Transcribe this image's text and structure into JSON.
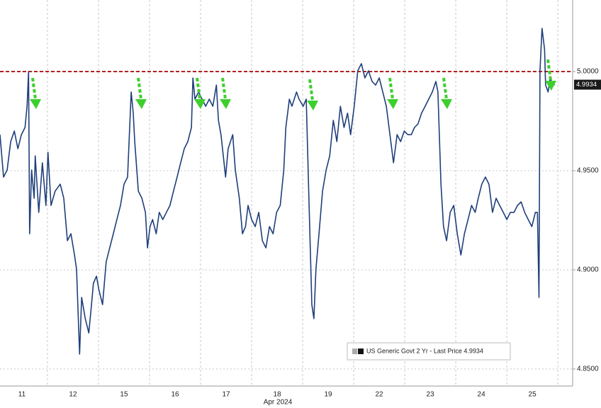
{
  "chart_data": {
    "type": "line",
    "x_axis_label": "Apr 2024",
    "x": [
      0.07,
      0.14,
      0.21,
      0.28,
      0.35,
      0.42,
      0.49,
      0.56,
      0.6,
      0.63,
      0.65,
      0.69,
      0.74,
      0.76,
      0.83,
      0.9,
      0.97,
      1.01,
      1.07,
      1.15,
      1.25,
      1.32,
      1.39,
      1.46,
      1.53,
      1.57,
      1.63,
      1.67,
      1.74,
      1.81,
      1.85,
      1.9,
      1.96,
      2.01,
      2.08,
      2.15,
      2.22,
      2.29,
      2.36,
      2.43,
      2.5,
      2.57,
      2.64,
      2.68,
      2.71,
      2.78,
      2.85,
      2.92,
      2.96,
      3.01,
      3.06,
      3.13,
      3.19,
      3.26,
      3.33,
      3.4,
      3.47,
      3.54,
      3.61,
      3.68,
      3.75,
      3.82,
      3.85,
      3.89,
      3.96,
      4.03,
      4.1,
      4.17,
      4.24,
      4.31,
      4.35,
      4.4,
      4.49,
      4.54,
      4.63,
      4.68,
      4.76,
      4.82,
      4.88,
      4.93,
      5.0,
      5.07,
      5.14,
      5.21,
      5.28,
      5.35,
      5.42,
      5.49,
      5.56,
      5.63,
      5.67,
      5.74,
      5.79,
      5.88,
      5.93,
      6.01,
      6.07,
      6.13,
      6.18,
      6.22,
      6.26,
      6.32,
      6.39,
      6.46,
      6.53,
      6.6,
      6.67,
      6.74,
      6.81,
      6.88,
      6.94,
      7.01,
      7.08,
      7.15,
      7.22,
      7.29,
      7.36,
      7.43,
      7.5,
      7.57,
      7.64,
      7.71,
      7.78,
      7.85,
      7.92,
      7.99,
      8.06,
      8.13,
      8.19,
      8.26,
      8.33,
      8.4,
      8.47,
      8.54,
      8.61,
      8.65,
      8.71,
      8.76,
      8.82,
      8.89,
      8.96,
      9.03,
      9.1,
      9.17,
      9.24,
      9.31,
      9.38,
      9.44,
      9.51,
      9.58,
      9.65,
      9.72,
      9.79,
      9.86,
      9.93,
      10.0,
      10.07,
      10.14,
      10.21,
      10.28,
      10.35,
      10.42,
      10.49,
      10.56,
      10.6,
      10.63,
      10.65,
      10.69,
      10.74,
      10.76,
      10.81,
      10.85,
      10.9,
      10.94
    ],
    "series": [
      {
        "name": "US Generic Govt 2 Yr - Last Price 4.9934",
        "color": "#1f3f7a",
        "values": [
          4.9682,
          4.9468,
          4.9504,
          4.9647,
          4.97,
          4.9611,
          4.9682,
          4.9718,
          4.9825,
          5.0,
          4.9182,
          4.9504,
          4.9361,
          4.9575,
          4.929,
          4.954,
          4.9325,
          4.9593,
          4.9325,
          4.9397,
          4.9432,
          4.9361,
          4.9147,
          4.9182,
          4.9075,
          4.9004,
          4.8575,
          4.8861,
          4.8754,
          4.8682,
          4.879,
          4.8932,
          4.8968,
          4.8897,
          4.8825,
          4.904,
          4.9111,
          4.9182,
          4.9254,
          4.9325,
          4.9432,
          4.9468,
          4.9897,
          4.979,
          4.9647,
          4.9397,
          4.9361,
          4.929,
          4.9111,
          4.9218,
          4.9254,
          4.9182,
          4.929,
          4.9254,
          4.929,
          4.9325,
          4.9397,
          4.9468,
          4.954,
          4.9611,
          4.9647,
          4.9718,
          4.9968,
          4.9861,
          4.9897,
          4.9861,
          4.9825,
          4.9861,
          4.9825,
          4.9932,
          4.9754,
          4.9682,
          4.9468,
          4.9611,
          4.9682,
          4.9504,
          4.9361,
          4.9182,
          4.9218,
          4.9325,
          4.9254,
          4.9218,
          4.929,
          4.9147,
          4.9111,
          4.9218,
          4.9182,
          4.929,
          4.9325,
          4.9504,
          4.9718,
          4.9861,
          4.9825,
          4.9897,
          4.9861,
          4.9825,
          4.9861,
          4.929,
          4.8825,
          4.8754,
          4.9004,
          4.9182,
          4.9397,
          4.9504,
          4.9575,
          4.9754,
          4.9647,
          4.9825,
          4.9718,
          4.979,
          4.9682,
          4.9825,
          5.0004,
          5.004,
          4.9968,
          5.0004,
          4.995,
          4.9932,
          4.9968,
          4.9897,
          4.9825,
          4.9682,
          4.954,
          4.9682,
          4.9647,
          4.97,
          4.9682,
          4.9682,
          4.9718,
          4.9736,
          4.979,
          4.9825,
          4.9861,
          4.9897,
          4.995,
          4.9897,
          4.9432,
          4.9218,
          4.9147,
          4.929,
          4.9325,
          4.9182,
          4.9075,
          4.9182,
          4.9254,
          4.9325,
          4.929,
          4.9361,
          4.9432,
          4.9468,
          4.9432,
          4.929,
          4.9361,
          4.9325,
          4.929,
          4.9254,
          4.929,
          4.929,
          4.9325,
          4.9343,
          4.929,
          4.9254,
          4.9218,
          4.929,
          4.929,
          4.8861,
          5.0004,
          5.0218,
          5.0111,
          4.9932,
          4.9897,
          4.9968,
          4.9932,
          4.9934
        ]
      }
    ],
    "last_value_label": "4.9934",
    "xlim": [
      0.07,
      11.29
    ],
    "xticks": [
      {
        "value": 0.5,
        "label": "11"
      },
      {
        "value": 1.5,
        "label": "12"
      },
      {
        "value": 2.5,
        "label": "15"
      },
      {
        "value": 3.5,
        "label": "16"
      },
      {
        "value": 4.5,
        "label": "17"
      },
      {
        "value": 5.5,
        "label": "18"
      },
      {
        "value": 6.5,
        "label": "19"
      },
      {
        "value": 7.5,
        "label": "22"
      },
      {
        "value": 8.5,
        "label": "23"
      },
      {
        "value": 9.5,
        "label": "24"
      },
      {
        "value": 10.5,
        "label": "25"
      }
    ],
    "x_gridlines": [
      1,
      2,
      3,
      4,
      5,
      6,
      7,
      8,
      9,
      10,
      11
    ],
    "ylim": [
      4.8414,
      5.0361
    ],
    "yticks": [
      {
        "value": 4.85,
        "label": "4.8500"
      },
      {
        "value": 4.9,
        "label": "4.9000"
      },
      {
        "value": 4.95,
        "label": "4.9500"
      },
      {
        "value": 5,
        "label": "5.0000"
      }
    ],
    "reference_line": {
      "value": 5,
      "color": "#b22222"
    },
    "grid": true
  }
}
